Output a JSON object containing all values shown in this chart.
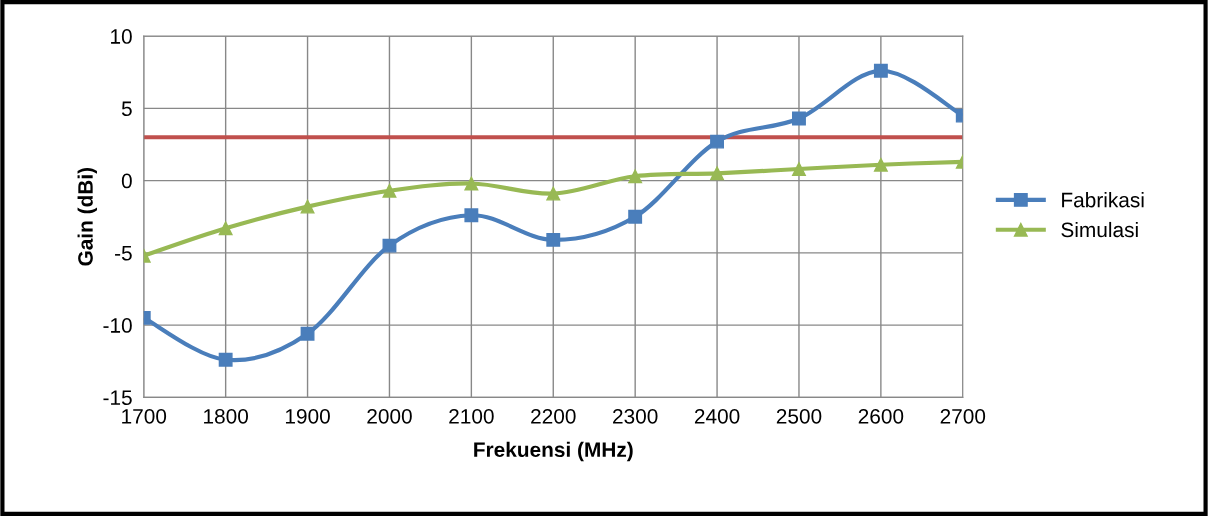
{
  "chart_data": {
    "type": "line",
    "xlabel": "Frekuensi (MHz)",
    "ylabel": "Gain (dBi)",
    "x": [
      1700,
      1800,
      1900,
      2000,
      2100,
      2200,
      2300,
      2400,
      2500,
      2600,
      2700
    ],
    "series": [
      {
        "name": "Fabrikasi",
        "color": "#4a7ebb",
        "marker": "square",
        "values": [
          -9.5,
          -12.4,
          -10.6,
          -4.5,
          -2.4,
          -4.1,
          -2.5,
          2.7,
          4.3,
          7.6,
          4.5
        ]
      },
      {
        "name": "Simulasi",
        "color": "#98b954",
        "marker": "triangle",
        "values": [
          -5.2,
          -3.3,
          -1.8,
          -0.7,
          -0.2,
          -0.9,
          0.3,
          0.5,
          0.8,
          1.1,
          1.3
        ]
      }
    ],
    "ref_lines": [
      {
        "axis": "y",
        "value": 3,
        "color": "#c0504d"
      }
    ],
    "xlim": [
      1700,
      2700
    ],
    "xticks": [
      1700,
      1800,
      1900,
      2000,
      2100,
      2200,
      2300,
      2400,
      2500,
      2600,
      2700
    ],
    "ylim": [
      -15,
      10
    ],
    "yticks": [
      -15,
      -10,
      -5,
      0,
      5,
      10
    ],
    "grid": true,
    "legend": "right",
    "line_style": "solid"
  }
}
